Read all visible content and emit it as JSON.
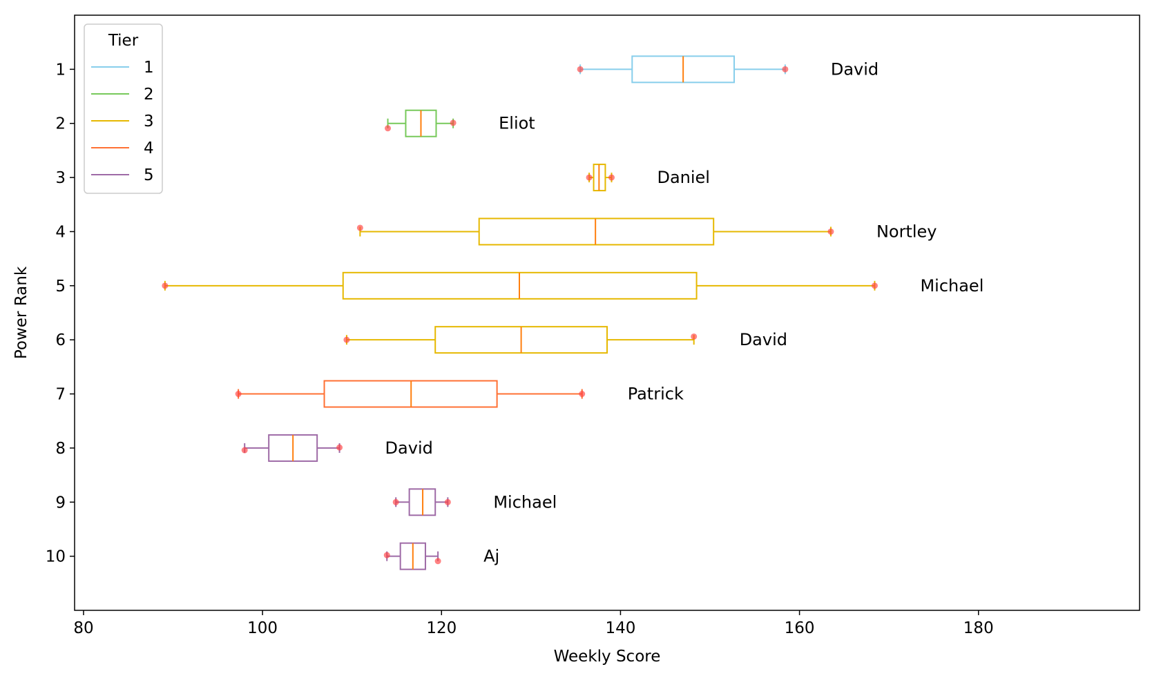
{
  "chart_data": {
    "type": "boxplot",
    "orientation": "horizontal",
    "xlabel": "Weekly Score",
    "ylabel": "Power Rank",
    "xlim": [
      79,
      198
    ],
    "xticks": [
      80,
      100,
      120,
      140,
      160,
      180
    ],
    "yticks": [
      1,
      2,
      3,
      4,
      5,
      6,
      7,
      8,
      9,
      10
    ],
    "ylim": [
      11,
      0
    ],
    "grid": false,
    "legend": {
      "title": "Tier",
      "placement": "top-left",
      "entries": [
        {
          "label": "1",
          "color": "#87ceeb"
        },
        {
          "label": "2",
          "color": "#77c95a"
        },
        {
          "label": "3",
          "color": "#e6b800"
        },
        {
          "label": "4",
          "color": "#ff7033"
        },
        {
          "label": "5",
          "color": "#9e6aa6"
        }
      ]
    },
    "median_color": "#ff7f0e",
    "point_color": "#ff4040",
    "boxes": [
      {
        "rank": 1,
        "name": "David",
        "tier": 1,
        "whisker_low": 135.5,
        "q1": 141.3,
        "median": 147.0,
        "q3": 152.7,
        "whisker_high": 158.4,
        "points": [
          {
            "x": 135.5,
            "dy": 0.0
          },
          {
            "x": 158.4,
            "dy": 0.0
          }
        ]
      },
      {
        "rank": 2,
        "name": "Eliot",
        "tier": 2,
        "whisker_low": 114.0,
        "q1": 116.0,
        "median": 117.7,
        "q3": 119.4,
        "whisker_high": 121.3,
        "points": [
          {
            "x": 114.0,
            "dy": 0.09
          },
          {
            "x": 121.3,
            "dy": -0.01
          }
        ]
      },
      {
        "rank": 3,
        "name": "Daniel",
        "tier": 3,
        "whisker_low": 136.5,
        "q1": 137.0,
        "median": 137.6,
        "q3": 138.3,
        "whisker_high": 139.0,
        "points": [
          {
            "x": 136.5,
            "dy": 0.0
          },
          {
            "x": 139.0,
            "dy": 0.0
          }
        ]
      },
      {
        "rank": 4,
        "name": "Nortley",
        "tier": 3,
        "whisker_low": 110.9,
        "q1": 124.2,
        "median": 137.2,
        "q3": 150.4,
        "whisker_high": 163.5,
        "points": [
          {
            "x": 110.9,
            "dy": -0.07
          },
          {
            "x": 163.5,
            "dy": 0.0
          }
        ]
      },
      {
        "rank": 5,
        "name": "Michael",
        "tier": 3,
        "whisker_low": 89.1,
        "q1": 109.0,
        "median": 128.7,
        "q3": 148.5,
        "whisker_high": 168.4,
        "points": [
          {
            "x": 89.1,
            "dy": 0.0
          },
          {
            "x": 168.4,
            "dy": 0.0
          }
        ]
      },
      {
        "rank": 6,
        "name": "David",
        "tier": 3,
        "whisker_low": 109.4,
        "q1": 119.3,
        "median": 128.9,
        "q3": 138.5,
        "whisker_high": 148.2,
        "points": [
          {
            "x": 109.4,
            "dy": 0.0
          },
          {
            "x": 148.2,
            "dy": -0.06
          }
        ]
      },
      {
        "rank": 7,
        "name": "Patrick",
        "tier": 4,
        "whisker_low": 97.3,
        "q1": 106.9,
        "median": 116.6,
        "q3": 126.2,
        "whisker_high": 135.7,
        "points": [
          {
            "x": 97.3,
            "dy": 0.0
          },
          {
            "x": 135.7,
            "dy": 0.0
          }
        ]
      },
      {
        "rank": 8,
        "name": "David",
        "tier": 5,
        "whisker_low": 98.0,
        "q1": 100.7,
        "median": 103.4,
        "q3": 106.1,
        "whisker_high": 108.6,
        "points": [
          {
            "x": 98.0,
            "dy": 0.04
          },
          {
            "x": 108.6,
            "dy": -0.01
          }
        ]
      },
      {
        "rank": 9,
        "name": "Michael",
        "tier": 5,
        "whisker_low": 114.9,
        "q1": 116.4,
        "median": 117.9,
        "q3": 119.3,
        "whisker_high": 120.7,
        "points": [
          {
            "x": 114.9,
            "dy": 0.0
          },
          {
            "x": 120.7,
            "dy": 0.0
          }
        ]
      },
      {
        "rank": 10,
        "name": "Aj",
        "tier": 5,
        "whisker_low": 113.9,
        "q1": 115.4,
        "median": 116.8,
        "q3": 118.2,
        "whisker_high": 119.6,
        "points": [
          {
            "x": 113.9,
            "dy": -0.02
          },
          {
            "x": 119.6,
            "dy": 0.09
          }
        ]
      }
    ]
  }
}
